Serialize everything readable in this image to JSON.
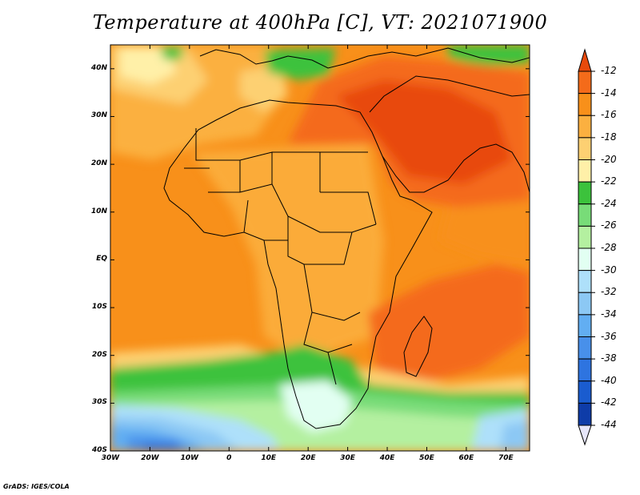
{
  "title": "Temperature at 400hPa [C], VT: 2021071900",
  "credit": "GrADS: IGES/COLA",
  "map": {
    "lon_range": [
      -30,
      76
    ],
    "lat_range": [
      -40,
      45
    ],
    "lon_ticks": [
      {
        "value": -30,
        "label": "30W"
      },
      {
        "value": -20,
        "label": "20W"
      },
      {
        "value": -10,
        "label": "10W"
      },
      {
        "value": 0,
        "label": "0"
      },
      {
        "value": 10,
        "label": "10E"
      },
      {
        "value": 20,
        "label": "20E"
      },
      {
        "value": 30,
        "label": "30E"
      },
      {
        "value": 40,
        "label": "40E"
      },
      {
        "value": 50,
        "label": "50E"
      },
      {
        "value": 60,
        "label": "60E"
      },
      {
        "value": 70,
        "label": "70E"
      }
    ],
    "lat_ticks": [
      {
        "value": 40,
        "label": "40N"
      },
      {
        "value": 30,
        "label": "30N"
      },
      {
        "value": 20,
        "label": "20N"
      },
      {
        "value": 10,
        "label": "10N"
      },
      {
        "value": 0,
        "label": "EQ"
      },
      {
        "value": -10,
        "label": "10S"
      },
      {
        "value": -20,
        "label": "20S"
      },
      {
        "value": -30,
        "label": "30S"
      },
      {
        "value": -40,
        "label": "40S"
      }
    ]
  },
  "colorbar": {
    "labels": [
      "-12",
      "-14",
      "-16",
      "-18",
      "-20",
      "-22",
      "-24",
      "-26",
      "-28",
      "-30",
      "-32",
      "-34",
      "-36",
      "-38",
      "-40",
      "-42",
      "-44"
    ],
    "colors": {
      "above": "#e84a0c",
      "bins": [
        "#f46b1a",
        "#f8901a",
        "#fbb040",
        "#fdd072",
        "#fff0a8",
        "#3cc23c",
        "#78dc78",
        "#b4f0a0",
        "#e2fff2",
        "#aee0fa",
        "#8cc8f4",
        "#62aef2",
        "#4890ea",
        "#2e74e0",
        "#1a5ccf",
        "#0e3ca8"
      ],
      "below": "#e6e6fa"
    }
  }
}
